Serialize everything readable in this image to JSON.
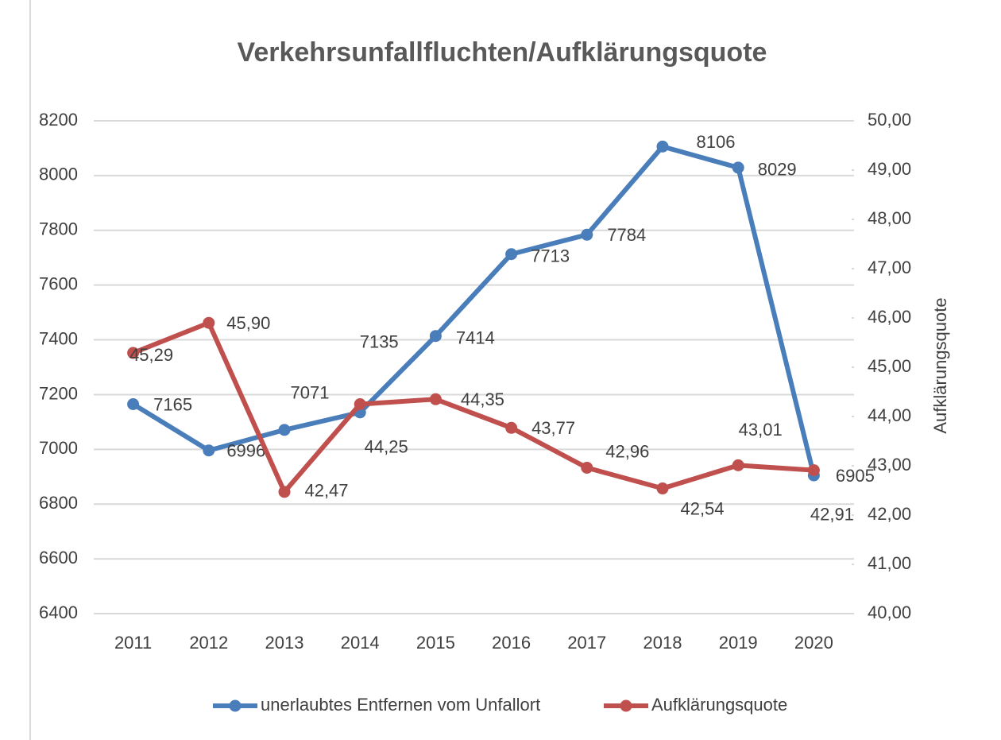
{
  "chart_data": {
    "type": "line",
    "title": "Verkehrsunfallfluchten/Aufklärungsquote",
    "y2label": "Aufklärungsquote",
    "categories": [
      "2011",
      "2012",
      "2013",
      "2014",
      "2015",
      "2016",
      "2017",
      "2018",
      "2019",
      "2020"
    ],
    "series": [
      {
        "name": "unerlaubtes Entfernen vom Unfallort",
        "color": "#4a7ebb",
        "values": [
          7165,
          6996,
          7071,
          7135,
          7414,
          7713,
          7784,
          8106,
          8029,
          6905
        ]
      },
      {
        "name": "Aufklärungsquote",
        "color": "#c0504d",
        "axis": "y2",
        "values": [
          45.29,
          45.9,
          42.47,
          44.25,
          44.35,
          43.77,
          42.96,
          42.54,
          43.01,
          42.91
        ],
        "value_labels": [
          "45,29",
          "45,90",
          "42,47",
          "44,25",
          "44,35",
          "43,77",
          "42,96",
          "42,54",
          "43,01",
          "42,91"
        ]
      }
    ],
    "ylim": [
      6400,
      8200
    ],
    "yticks": [
      6400,
      6600,
      6800,
      7000,
      7200,
      7400,
      7600,
      7800,
      8000,
      8200
    ],
    "y2lim": [
      40,
      50
    ],
    "y2ticks": [
      {
        "value": 40,
        "label": "40,00"
      },
      {
        "value": 41,
        "label": "41,00"
      },
      {
        "value": 42,
        "label": "42,00"
      },
      {
        "value": 43,
        "label": "43,00"
      },
      {
        "value": 44,
        "label": "44,00"
      },
      {
        "value": 45,
        "label": "45,00"
      },
      {
        "value": 46,
        "label": "46,00"
      },
      {
        "value": 47,
        "label": "47,00"
      },
      {
        "value": 48,
        "label": "48,00"
      },
      {
        "value": 49,
        "label": "49,00"
      },
      {
        "value": 50,
        "label": "50,00"
      }
    ],
    "grid": true,
    "legend": "bottom"
  }
}
